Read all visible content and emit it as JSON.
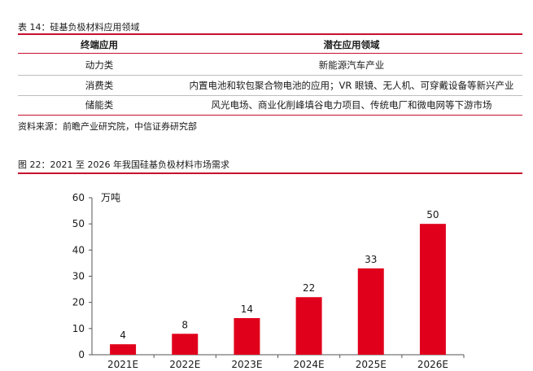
{
  "table": {
    "caption": "表 14：硅基负极材料应用领域",
    "headers": [
      "终端应用",
      "潜在应用领域"
    ],
    "rows": [
      [
        "动力类",
        "新能源汽车产业"
      ],
      [
        "消费类",
        "内置电池和软包聚合物电池的应用；VR 眼镜、无人机、可穿戴设备等新兴产业"
      ],
      [
        "储能类",
        "风光电场、商业化削峰填谷电力项目、传统电厂和微电网等下游市场"
      ]
    ],
    "source": "资料来源：前瞻产业研究院，中信证券研究部"
  },
  "figure": {
    "caption": "图 22：2021 至 2026 年我国硅基负极材料市场需求"
  },
  "chart_data": {
    "type": "bar",
    "categories": [
      "2021E",
      "2022E",
      "2023E",
      "2024E",
      "2025E",
      "2026E"
    ],
    "values": [
      4,
      8,
      14,
      22,
      33,
      50
    ],
    "data_labels": [
      "4",
      "8",
      "14",
      "22",
      "33",
      "50"
    ],
    "ylabel": "万吨",
    "ylim": [
      0,
      60
    ],
    "yticks": [
      0,
      10,
      20,
      30,
      40,
      50,
      60
    ],
    "ytick_labels": [
      "0",
      "10",
      "20",
      "30",
      "40",
      "50",
      "60"
    ],
    "grid": false,
    "bar_color": "#e0001b"
  }
}
